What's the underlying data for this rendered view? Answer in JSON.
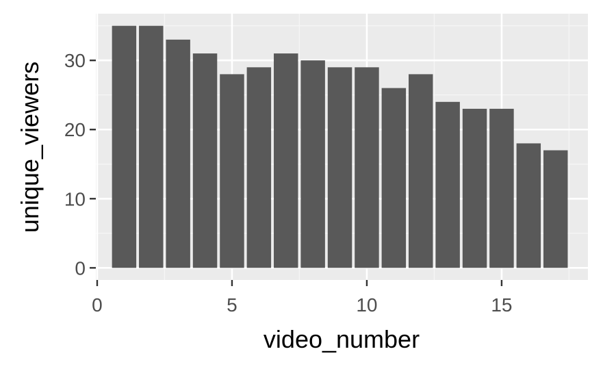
{
  "chart_data": {
    "type": "bar",
    "title": "",
    "xlabel": "video_number",
    "ylabel": "unique_viewers",
    "x": [
      1,
      2,
      3,
      4,
      5,
      6,
      7,
      8,
      9,
      10,
      11,
      12,
      13,
      14,
      15,
      16,
      17
    ],
    "values": [
      35,
      35,
      33,
      31,
      28,
      29,
      31,
      30,
      29,
      29,
      26,
      28,
      24,
      23,
      23,
      18,
      17
    ],
    "xlim": [
      -0.05,
      18.2
    ],
    "ylim": [
      -1.75,
      36.75
    ],
    "xticks": [
      0,
      5,
      10,
      15
    ],
    "yticks": [
      0,
      10,
      20,
      30
    ],
    "xtick_labels": [
      "0",
      "5",
      "10",
      "15"
    ],
    "ytick_labels": [
      "0",
      "10",
      "20",
      "30"
    ],
    "grid": true,
    "colors": {
      "bar": "#595959",
      "panel": "#ebebeb",
      "grid_major": "#ffffff",
      "grid_minor": "#f5f5f5",
      "tick": "#333333"
    }
  }
}
